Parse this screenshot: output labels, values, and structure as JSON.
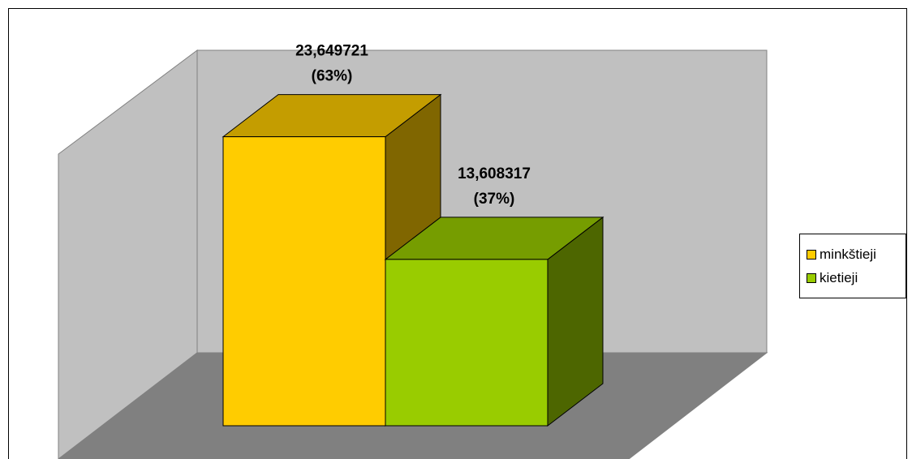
{
  "chart_data": {
    "type": "bar",
    "variant": "3d",
    "categories": [
      "minkštieji",
      "kietieji"
    ],
    "values": [
      23.649721,
      13.608317
    ],
    "data_labels": [
      {
        "value": "23,649721",
        "percent": "(63%)"
      },
      {
        "value": "13,608317",
        "percent": "(37%)"
      }
    ],
    "ylim": [
      0,
      25
    ],
    "grid": false,
    "legend_position": "right",
    "colors": {
      "series": [
        "#ffcc00",
        "#99cc00"
      ],
      "wall": "#c0c0c0",
      "floor": "#808080"
    }
  },
  "legend": {
    "items": [
      {
        "label": "minkštieji",
        "color": "#ffcc00"
      },
      {
        "label": "kietieji",
        "color": "#99cc00"
      }
    ]
  }
}
